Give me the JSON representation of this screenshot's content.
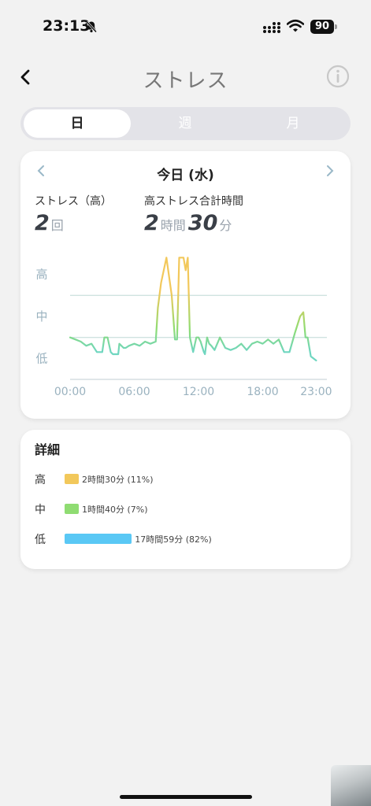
{
  "status_bar": {
    "time": "23:13",
    "battery": "90"
  },
  "nav": {
    "title": "ストレス"
  },
  "tabs": [
    {
      "label": "日",
      "active": true
    },
    {
      "label": "週",
      "active": false
    },
    {
      "label": "月",
      "active": false
    }
  ],
  "summary": {
    "date": "今日 (水)",
    "count_label": "ストレス（高）",
    "count_value": "2",
    "count_unit": "回",
    "duration_label": "高ストレス合計時間",
    "hours_value": "2",
    "hours_unit": "時間",
    "minutes_value": "30",
    "minutes_unit": "分"
  },
  "chart_data": {
    "type": "line",
    "y_levels": [
      "高",
      "中",
      "低"
    ],
    "x_ticks": [
      "00:00",
      "06:00",
      "12:00",
      "18:00",
      "23:00"
    ],
    "xlim": [
      0,
      24
    ],
    "ylim": [
      0,
      3
    ],
    "x": [
      0,
      0.5,
      1,
      1.5,
      2,
      2.5,
      3,
      3.2,
      3.5,
      3.8,
      4,
      4.5,
      4.6,
      5,
      5.2,
      5.5,
      6,
      6.5,
      7,
      7.5,
      8,
      8.2,
      8.5,
      9,
      9.5,
      9.8,
      10,
      10.2,
      10.4,
      10.6,
      10.8,
      11,
      11.2,
      11.5,
      11.8,
      12,
      12.2,
      12.5,
      12.6,
      12.8,
      13,
      13.2,
      13.5,
      14,
      14.5,
      15,
      15.5,
      16,
      16.5,
      17,
      17.5,
      18,
      18.5,
      19,
      19.5,
      20,
      20.5,
      21,
      21.5,
      21.8,
      22,
      22.2,
      22.5,
      23
    ],
    "y": [
      1.0,
      0.95,
      0.9,
      0.8,
      0.85,
      0.65,
      0.65,
      1.0,
      1.0,
      0.65,
      0.6,
      0.6,
      0.85,
      0.75,
      0.75,
      0.8,
      0.85,
      0.8,
      0.9,
      0.85,
      0.9,
      1.7,
      2.3,
      2.9,
      2.0,
      0.95,
      0.95,
      2.9,
      2.9,
      2.9,
      2.6,
      2.9,
      1.0,
      0.65,
      1.0,
      1.0,
      0.9,
      0.65,
      0.6,
      1.0,
      0.85,
      0.8,
      0.7,
      1.0,
      0.75,
      0.7,
      0.75,
      0.85,
      0.7,
      0.85,
      0.9,
      0.85,
      0.95,
      0.85,
      0.95,
      0.65,
      0.65,
      1.1,
      1.5,
      1.6,
      1.0,
      1.0,
      0.55,
      0.45
    ],
    "colors": {
      "high": "#f2c85b",
      "mid": "#8fdc72",
      "low": "#6fd6c0"
    }
  },
  "detail": {
    "title": "詳細",
    "rows": [
      {
        "level": "高",
        "text": "2時間30分 (11%)",
        "percent": 11,
        "color": "#f2c85b"
      },
      {
        "level": "中",
        "text": "1時間40分 (7%)",
        "percent": 7,
        "color": "#8fdc72"
      },
      {
        "level": "低",
        "text": "17時間59分 (82%)",
        "percent": 82,
        "color": "#5ac8f5"
      }
    ]
  }
}
